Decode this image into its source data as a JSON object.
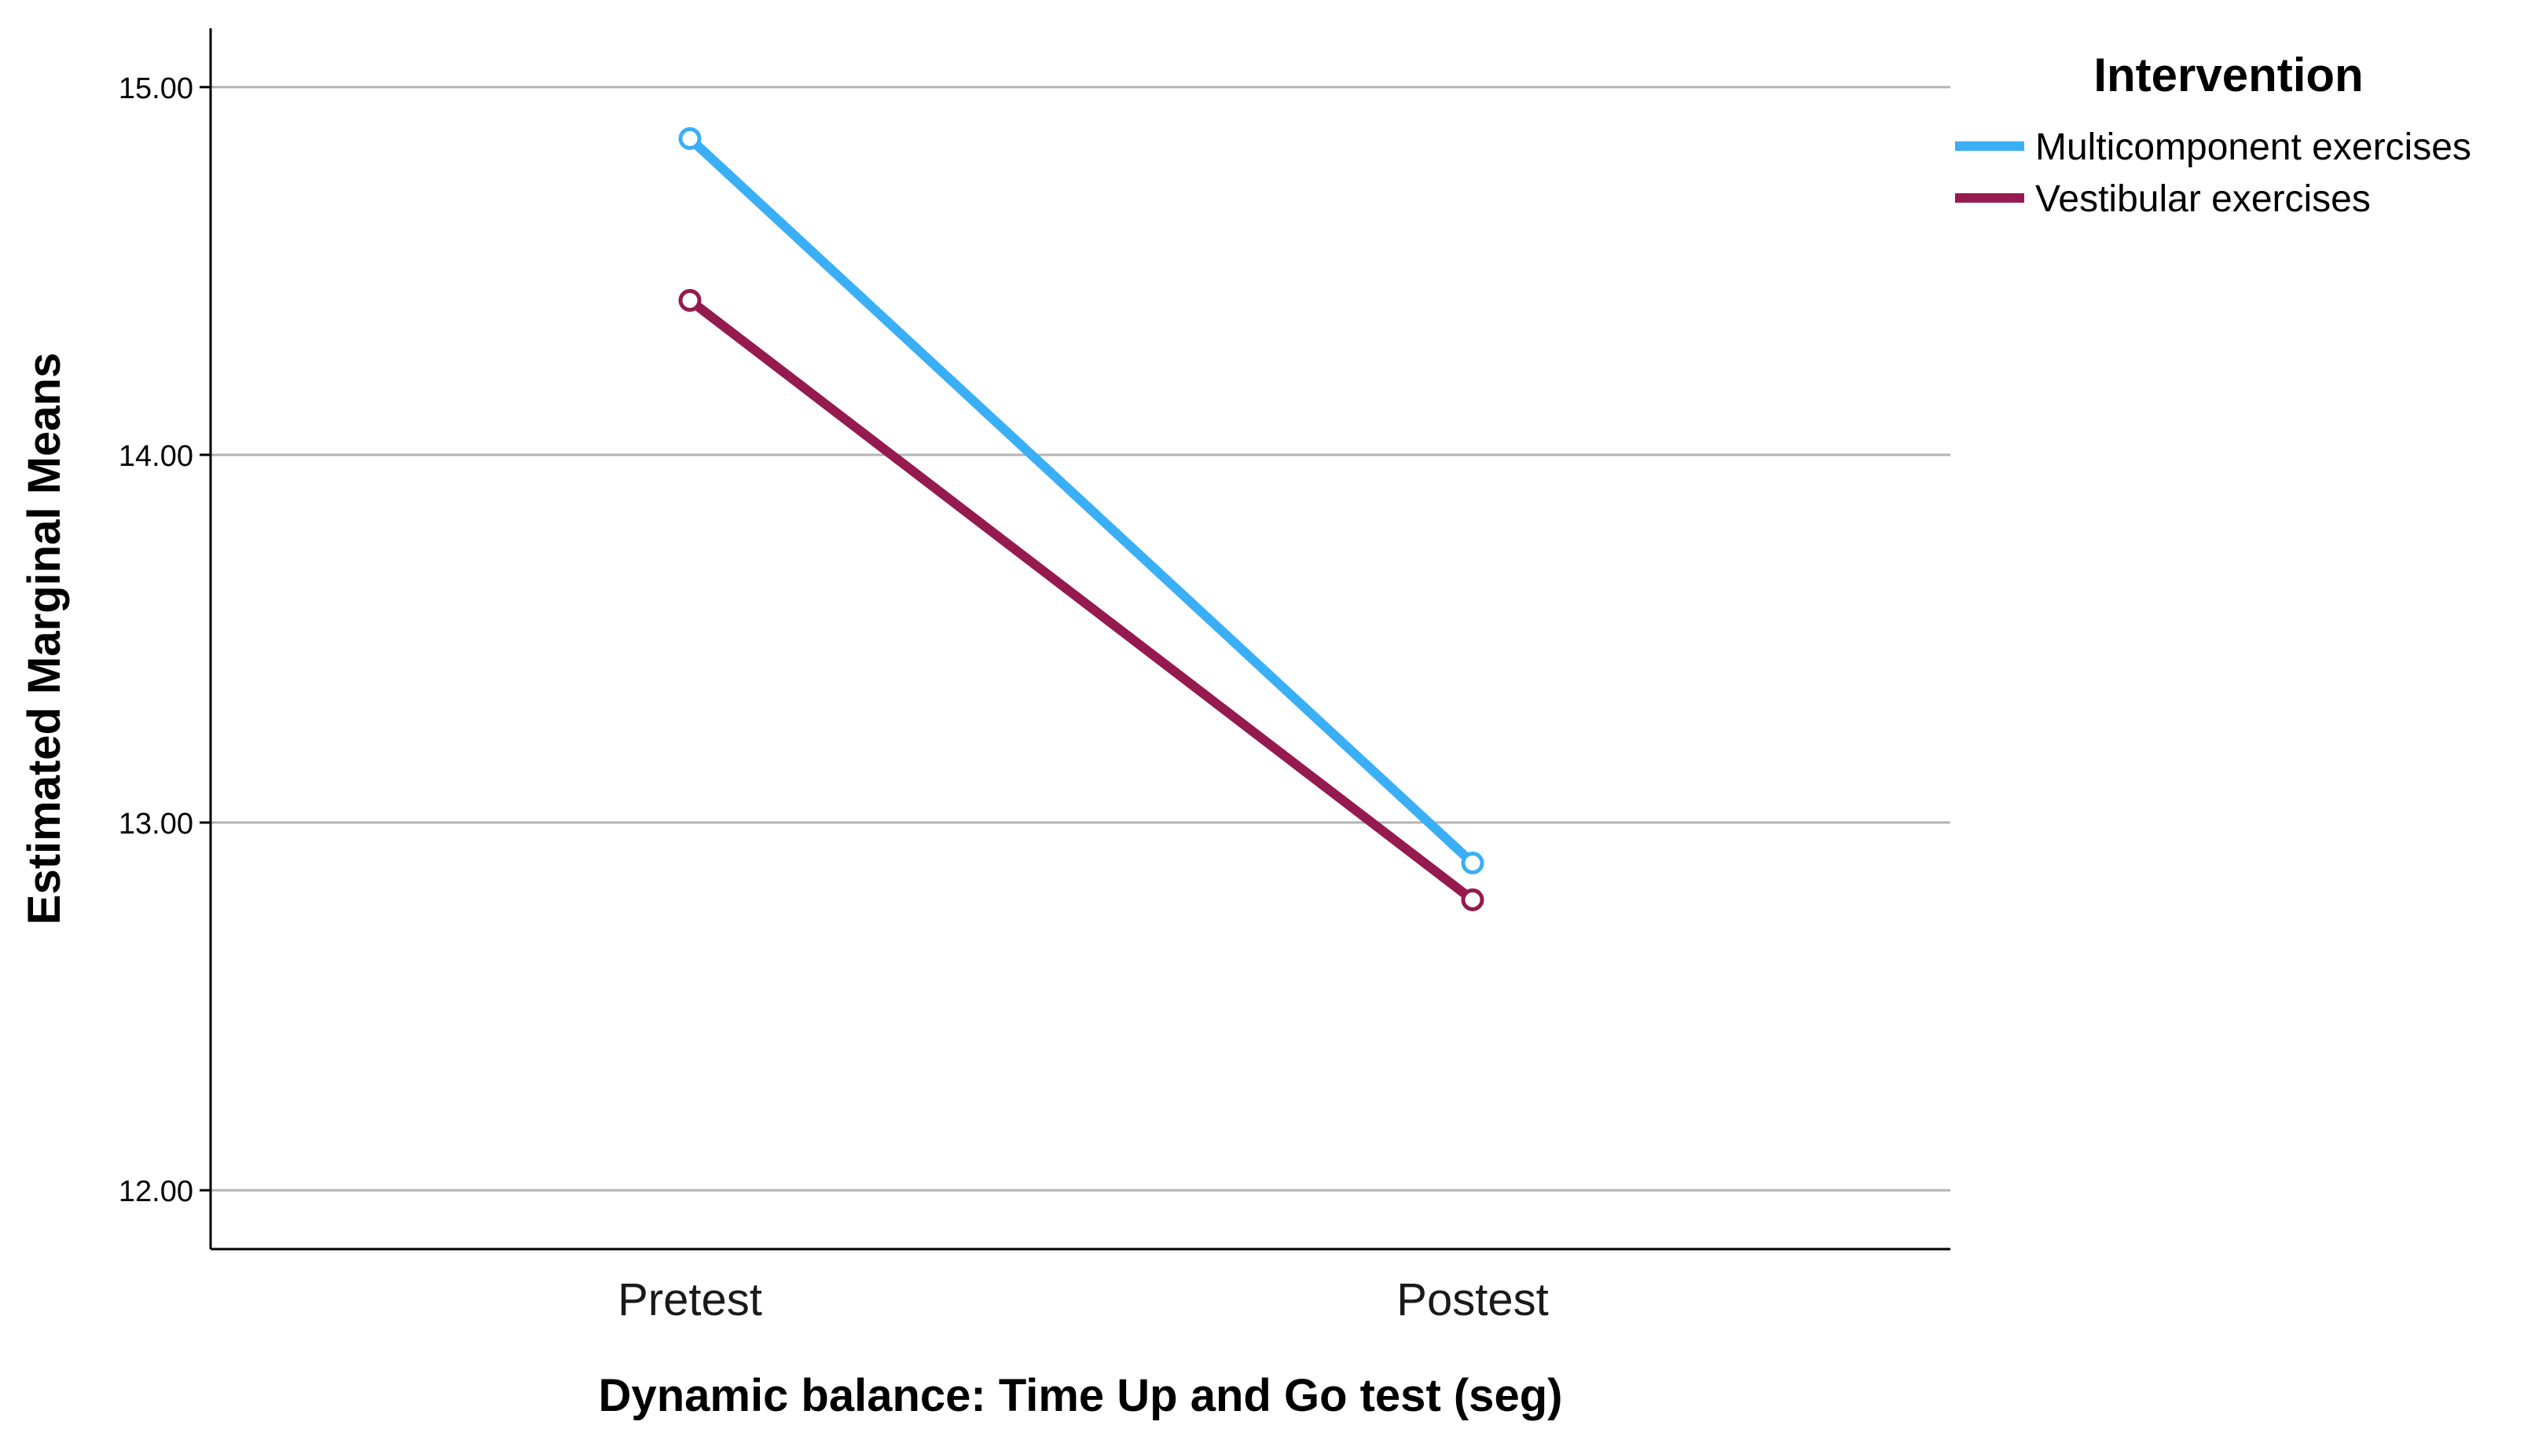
{
  "chart_data": {
    "type": "line",
    "xlabel": "Dynamic balance: Time Up and Go test (seg)",
    "ylabel": "Estimated Marginal Means",
    "categories": [
      "Pretest",
      "Postest"
    ],
    "ylim": [
      11.84,
      15.16
    ],
    "yticks": [
      12.0,
      13.0,
      14.0,
      15.0
    ],
    "ytick_labels": [
      "12.00",
      "13.00",
      "14.00",
      "15.00"
    ],
    "grid": "horizontal",
    "legend": {
      "title": "Intervention",
      "position": "top-right"
    },
    "series": [
      {
        "name": "Multicomponent exercises",
        "color": "#3AAFF5",
        "values": [
          14.86,
          12.89
        ],
        "marker": "open-circle"
      },
      {
        "name": "Vestibular exercises",
        "color": "#951A4F",
        "values": [
          14.42,
          12.79
        ],
        "marker": "open-circle"
      }
    ]
  }
}
